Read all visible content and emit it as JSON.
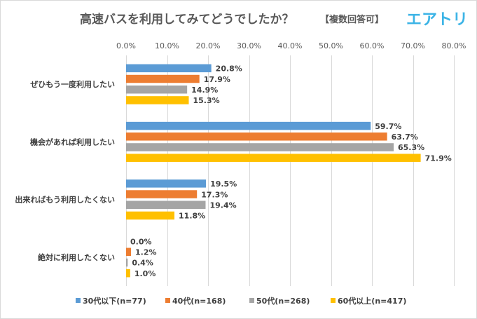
{
  "header": {
    "title": "高速バスを利用してみてどうでしたか？",
    "subtitle": "【複数回答可】",
    "brand": "エアトリ"
  },
  "chart_data": {
    "type": "bar",
    "orientation": "horizontal",
    "categories": [
      "ぜひもう一度利用したい",
      "機会があれば利用したい",
      "出来ればもう利用したくない",
      "絶対に利用したくない"
    ],
    "x_ticks": [
      "0.0%",
      "10.0%",
      "20.0%",
      "30.0%",
      "40.0%",
      "50.0%",
      "60.0%",
      "70.0%",
      "80.0%"
    ],
    "xlim": [
      0,
      80
    ],
    "grid": true,
    "legend_position": "bottom",
    "series": [
      {
        "name": "30代以下(n=77)",
        "color": "#5b9bd5",
        "values": [
          20.8,
          59.7,
          19.5,
          0.0
        ],
        "labels": [
          "20.8%",
          "59.7%",
          "19.5%",
          "0.0%"
        ]
      },
      {
        "name": "40代(n=168)",
        "color": "#ed7d31",
        "values": [
          17.9,
          63.7,
          17.3,
          1.2
        ],
        "labels": [
          "17.9%",
          "63.7%",
          "17.3%",
          "1.2%"
        ]
      },
      {
        "name": "50代(n=268)",
        "color": "#a5a5a5",
        "values": [
          14.9,
          65.3,
          19.4,
          0.4
        ],
        "labels": [
          "14.9%",
          "65.3%",
          "19.4%",
          "0.4%"
        ]
      },
      {
        "name": "60代以上(n=417)",
        "color": "#ffc000",
        "values": [
          15.3,
          71.9,
          11.8,
          1.0
        ],
        "labels": [
          "15.3%",
          "71.9%",
          "11.8%",
          "1.0%"
        ]
      }
    ]
  }
}
